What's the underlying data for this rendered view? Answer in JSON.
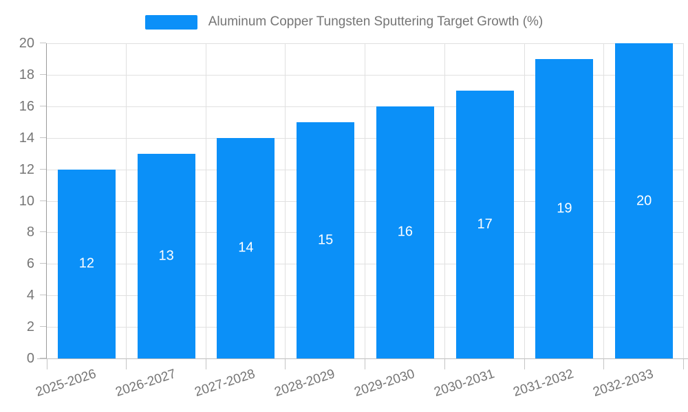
{
  "legend": {
    "label": "Aluminum Copper Tungsten Sputtering Target Growth (%)"
  },
  "chart_data": {
    "type": "bar",
    "title": "Aluminum Copper Tungsten Sputtering Target Growth (%)",
    "categories": [
      "2025-2026",
      "2026-2027",
      "2027-2028",
      "2028-2029",
      "2029-2030",
      "2030-2031",
      "2031-2032",
      "2032-2033"
    ],
    "values": [
      12,
      13,
      14,
      15,
      16,
      17,
      19,
      20
    ],
    "value_labels": [
      "12",
      "13",
      "14",
      "15",
      "16",
      "17",
      "19",
      "20"
    ],
    "value_label_position": "inside-center",
    "xlabel": "",
    "ylabel": "",
    "ylim": [
      0,
      20
    ],
    "ytick_step": 2,
    "yticks": [
      "0",
      "2",
      "4",
      "6",
      "8",
      "10",
      "12",
      "14",
      "16",
      "18",
      "20"
    ],
    "grid": true,
    "legend_position": "top-center",
    "x_label_rotation_deg": -18,
    "colors": {
      "bar": "#0b90f8",
      "grid": "#e0e0e0",
      "y_axis_line": "#9a9a9a",
      "x_axis_line": "#bdbdbd",
      "tick_mark": "#c4c4c4",
      "tick_text": "#757575",
      "value_label_text": "#ffffff"
    }
  }
}
